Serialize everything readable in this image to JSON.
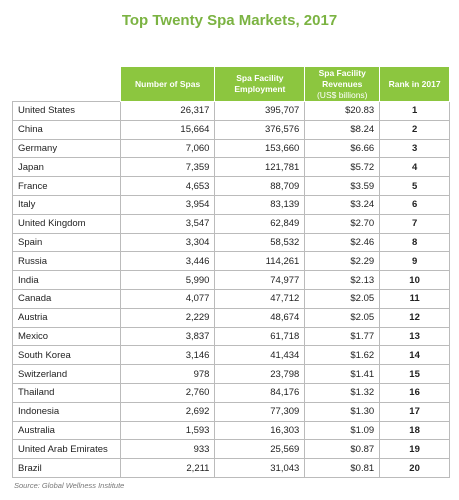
{
  "title": "Top Twenty Spa Markets, 2017",
  "table": {
    "header": [
      {
        "label": "Number of Spas"
      },
      {
        "label": "Spa Facility Employment"
      },
      {
        "label": "Spa Facility Revenues",
        "sub": "(US$ billions)"
      },
      {
        "label": "Rank in 2017"
      }
    ],
    "rows": [
      [
        "United States",
        "26,317",
        "395,707",
        "$20.83",
        "1"
      ],
      [
        "China",
        "15,664",
        "376,576",
        "$8.24",
        "2"
      ],
      [
        "Germany",
        "7,060",
        "153,660",
        "$6.66",
        "3"
      ],
      [
        "Japan",
        "7,359",
        "121,781",
        "$5.72",
        "4"
      ],
      [
        "France",
        "4,653",
        "88,709",
        "$3.59",
        "5"
      ],
      [
        "Italy",
        "3,954",
        "83,139",
        "$3.24",
        "6"
      ],
      [
        "United Kingdom",
        "3,547",
        "62,849",
        "$2.70",
        "7"
      ],
      [
        "Spain",
        "3,304",
        "58,532",
        "$2.46",
        "8"
      ],
      [
        "Russia",
        "3,446",
        "114,261",
        "$2.29",
        "9"
      ],
      [
        "India",
        "5,990",
        "74,977",
        "$2.13",
        "10"
      ],
      [
        "Canada",
        "4,077",
        "47,712",
        "$2.05",
        "11"
      ],
      [
        "Austria",
        "2,229",
        "48,674",
        "$2.05",
        "12"
      ],
      [
        "Mexico",
        "3,837",
        "61,718",
        "$1.77",
        "13"
      ],
      [
        "South Korea",
        "3,146",
        "41,434",
        "$1.62",
        "14"
      ],
      [
        "Switzerland",
        "978",
        "23,798",
        "$1.41",
        "15"
      ],
      [
        "Thailand",
        "2,760",
        "84,176",
        "$1.32",
        "16"
      ],
      [
        "Indonesia",
        "2,692",
        "77,309",
        "$1.30",
        "17"
      ],
      [
        "Australia",
        "1,593",
        "16,303",
        "$1.09",
        "18"
      ],
      [
        "United Arab Emirates",
        "933",
        "25,569",
        "$0.87",
        "19"
      ],
      [
        "Brazil",
        "2,211",
        "31,043",
        "$0.81",
        "20"
      ]
    ]
  },
  "source": "Source: Global Wellness Institute"
}
